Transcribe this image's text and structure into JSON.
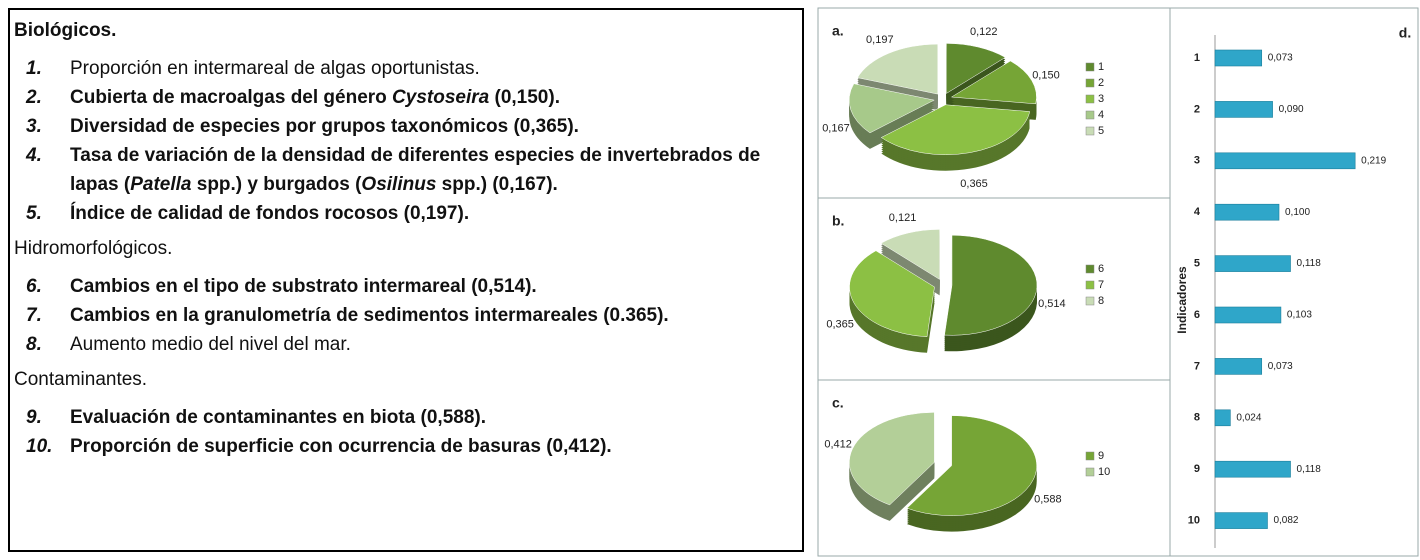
{
  "panel": {
    "sections": [
      {
        "title": "Biológicos.",
        "bold": true,
        "items": [
          {
            "number": "1.",
            "bold": false,
            "parts": [
              {
                "text": "Proporción en intermareal de algas oportunistas."
              }
            ]
          },
          {
            "number": "2.",
            "bold": true,
            "parts": [
              {
                "text": "Cubierta de macroalgas del género "
              },
              {
                "text": "Cystoseira",
                "italic": true
              },
              {
                "text": " (0,150)."
              }
            ]
          },
          {
            "number": "3.",
            "bold": true,
            "parts": [
              {
                "text": "Diversidad de especies por grupos taxonómicos (0,365)."
              }
            ]
          },
          {
            "number": "4.",
            "bold": true,
            "parts": [
              {
                "text": "Tasa de variación de la densidad de diferentes especies de invertebrados de lapas ("
              },
              {
                "text": "Patella",
                "italic": true
              },
              {
                "text": " spp.) y burgados ("
              },
              {
                "text": "Osilinus",
                "italic": true
              },
              {
                "text": " spp.) (0,167)."
              }
            ]
          },
          {
            "number": "5.",
            "bold": true,
            "parts": [
              {
                "text": "Índice de calidad de fondos rocosos  (0,197)."
              }
            ]
          }
        ]
      },
      {
        "title": "Hidromorfológicos.",
        "bold": false,
        "items": [
          {
            "number": "6.",
            "bold": true,
            "parts": [
              {
                "text": "Cambios en el tipo de substrato intermareal (0,514)."
              }
            ]
          },
          {
            "number": "7.",
            "bold": true,
            "parts": [
              {
                "text": "Cambios en la granulometría de sedimentos intermareales (0.365)."
              }
            ]
          },
          {
            "number": "8.",
            "bold": false,
            "parts": [
              {
                "text": "Aumento medio del nivel del mar."
              }
            ]
          }
        ]
      },
      {
        "title": "Contaminantes.",
        "bold": false,
        "items": [
          {
            "number": "9.",
            "bold": true,
            "parts": [
              {
                "text": "Evaluación de contaminantes en biota (0,588)."
              }
            ]
          },
          {
            "number": "10.",
            "bold": true,
            "parts": [
              {
                "text": "Proporción de superficie con ocurrencia de basuras (0,412)."
              }
            ]
          }
        ]
      }
    ]
  },
  "chart_data": [
    {
      "type": "pie",
      "title": "a.",
      "categories": [
        "1",
        "2",
        "3",
        "4",
        "5"
      ],
      "values": [
        0.122,
        0.15,
        0.365,
        0.167,
        0.197
      ],
      "value_labels": [
        "0,122",
        "0,150",
        "0,365",
        "0,167",
        "0,197"
      ],
      "colors": [
        "#5f8a2e",
        "#76a536",
        "#8cc044",
        "#a7c98a",
        "#c9dcb6"
      ]
    },
    {
      "type": "pie",
      "title": "b.",
      "categories": [
        "6",
        "7",
        "8"
      ],
      "values": [
        0.514,
        0.365,
        0.121
      ],
      "value_labels": [
        "0,514",
        "0,365",
        "0,121"
      ],
      "colors": [
        "#5f8a2e",
        "#8cc044",
        "#c9dcb6"
      ]
    },
    {
      "type": "pie",
      "title": "c.",
      "categories": [
        "9",
        "10"
      ],
      "values": [
        0.588,
        0.412
      ],
      "value_labels": [
        "0,588",
        "0,412"
      ],
      "colors": [
        "#76a536",
        "#b3cf98"
      ]
    },
    {
      "type": "hbar",
      "title": "d.",
      "y_label": "Indicadores",
      "categories": [
        "1",
        "2",
        "3",
        "4",
        "5",
        "6",
        "7",
        "8",
        "9",
        "10"
      ],
      "values": [
        0.073,
        0.09,
        0.219,
        0.1,
        0.118,
        0.103,
        0.073,
        0.024,
        0.118,
        0.082
      ],
      "value_labels": [
        "0,073",
        "0,090",
        "0,219",
        "0,100",
        "0,118",
        "0,103",
        "0,073",
        "0,024",
        "0,118",
        "0,082"
      ],
      "color": "#2fa6c9",
      "xlim": [
        0,
        0.25
      ]
    }
  ]
}
